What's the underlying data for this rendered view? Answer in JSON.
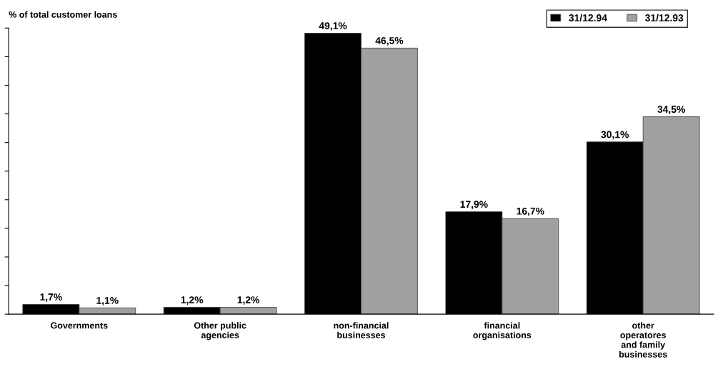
{
  "chart_data": {
    "type": "bar",
    "ylabel": "% of total customer loans",
    "categories": [
      "Governments",
      "Other public\nagencies",
      "non-financial\nbusinesses",
      "financial\norganisations",
      "other\noperatores\nand family\nbusinesses"
    ],
    "series": [
      {
        "name": "31/12.94",
        "color": "#000000",
        "values": [
          1.7,
          1.2,
          49.1,
          17.9,
          30.1
        ],
        "value_labels": [
          "1,7%",
          "1,2%",
          "49,1%",
          "17,9%",
          "30,1%"
        ]
      },
      {
        "name": "31/12.93",
        "color": "#a0a0a0",
        "values": [
          1.1,
          1.2,
          46.5,
          16.7,
          34.5
        ],
        "value_labels": [
          "1,1%",
          "1,2%",
          "46,5%",
          "16,7%",
          "34,5%"
        ]
      }
    ],
    "ylim": [
      0,
      50
    ],
    "yticks": [
      0,
      5,
      10,
      15,
      20,
      25,
      30,
      35,
      40,
      45,
      50
    ],
    "tick_labels": "x",
    "grid": false,
    "legend": "top right"
  }
}
